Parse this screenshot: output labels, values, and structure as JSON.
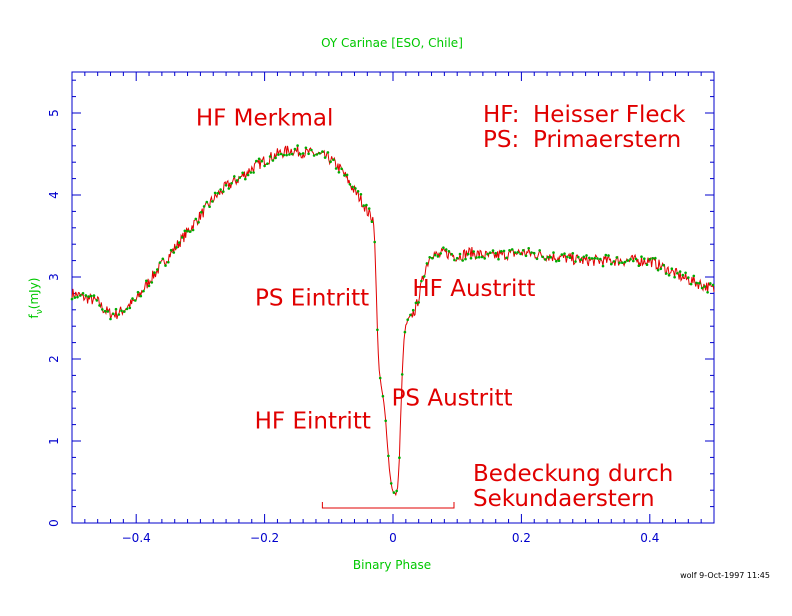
{
  "chart_data": {
    "type": "line",
    "title": "OY Carinae [ESO, Chile]",
    "xlabel": "Binary Phase",
    "ylabel": "f_ν (mJy)",
    "ylabel_main": "f",
    "ylabel_sub": "ν",
    "ylabel_unit": "(mJy)",
    "xlim": [
      -0.5,
      0.5
    ],
    "ylim": [
      0,
      5.5
    ],
    "x_ticks": [
      -0.4,
      -0.2,
      0,
      0.2,
      0.4
    ],
    "x_tick_labels": [
      "−0.4",
      "−0.2",
      "0",
      "0.2",
      "0.4"
    ],
    "y_ticks": [
      0,
      1,
      2,
      3,
      4,
      5
    ],
    "y_tick_labels": [
      "0",
      "1",
      "2",
      "3",
      "4",
      "5"
    ],
    "grid": false,
    "colors": {
      "axes": "#0000cc",
      "axis_labels": "#00c800",
      "line": "#e00000",
      "points": "#00aa00",
      "annotations": "#e00000",
      "footer": "#000000"
    },
    "series": [
      {
        "x": [
          -0.5,
          -0.48,
          -0.46,
          -0.45,
          -0.44,
          -0.43,
          -0.42,
          -0.4,
          -0.38,
          -0.36,
          -0.34,
          -0.32,
          -0.3,
          -0.28,
          -0.26,
          -0.24,
          -0.22,
          -0.2,
          -0.18,
          -0.16,
          -0.14,
          -0.12,
          -0.1,
          -0.08,
          -0.06,
          -0.05,
          -0.04,
          -0.03,
          -0.028,
          -0.026,
          -0.024,
          -0.022,
          -0.02,
          -0.018,
          -0.016,
          -0.014,
          -0.012,
          -0.01,
          -0.008,
          -0.006,
          -0.004,
          -0.002,
          0,
          0.002,
          0.004,
          0.006,
          0.008,
          0.01,
          0.012,
          0.014,
          0.016,
          0.018,
          0.02,
          0.022,
          0.025,
          0.03,
          0.035,
          0.04,
          0.05,
          0.055,
          0.06,
          0.07,
          0.08,
          0.1,
          0.12,
          0.15,
          0.2,
          0.25,
          0.3,
          0.35,
          0.4,
          0.45,
          0.5
        ],
        "y": [
          2.8,
          2.75,
          2.7,
          2.6,
          2.55,
          2.55,
          2.6,
          2.72,
          2.95,
          3.15,
          3.35,
          3.55,
          3.75,
          3.95,
          4.1,
          4.2,
          4.32,
          4.42,
          4.5,
          4.55,
          4.52,
          4.5,
          4.45,
          4.3,
          4.05,
          3.95,
          3.8,
          3.7,
          3.3,
          2.8,
          2.3,
          1.9,
          1.75,
          1.65,
          1.55,
          1.45,
          1.3,
          1.1,
          0.9,
          0.7,
          0.55,
          0.45,
          0.38,
          0.36,
          0.35,
          0.38,
          0.5,
          0.8,
          1.3,
          1.75,
          2.1,
          2.3,
          2.4,
          2.45,
          2.5,
          2.55,
          2.6,
          2.75,
          3.1,
          3.2,
          3.3,
          3.25,
          3.3,
          3.25,
          3.3,
          3.25,
          3.3,
          3.25,
          3.2,
          3.2,
          3.2,
          3.0,
          2.85
        ]
      }
    ],
    "annotations": [
      {
        "text": "HF Merkmal",
        "x": -0.2,
        "y": 4.85
      },
      {
        "text": "PS Eintritt",
        "x": -0.126,
        "y": 2.65
      },
      {
        "text": "HF Eintritt",
        "x": -0.125,
        "y": 1.15
      },
      {
        "text": "PS Austritt",
        "x": 0.092,
        "y": 1.43
      },
      {
        "text": "HF Austritt",
        "x": 0.126,
        "y": 2.77
      }
    ],
    "legend_lines": [
      {
        "abbr": "HF:",
        "text": "Heisser Fleck"
      },
      {
        "abbr": "PS:",
        "text": "Primaerstern"
      }
    ],
    "eclipse_note": {
      "line1": "Bedeckung durch",
      "line2": "Sekundaerstern",
      "bracket_x": [
        -0.11,
        0.095
      ]
    },
    "footer": "wolf  9-Oct-1997 11:45"
  }
}
